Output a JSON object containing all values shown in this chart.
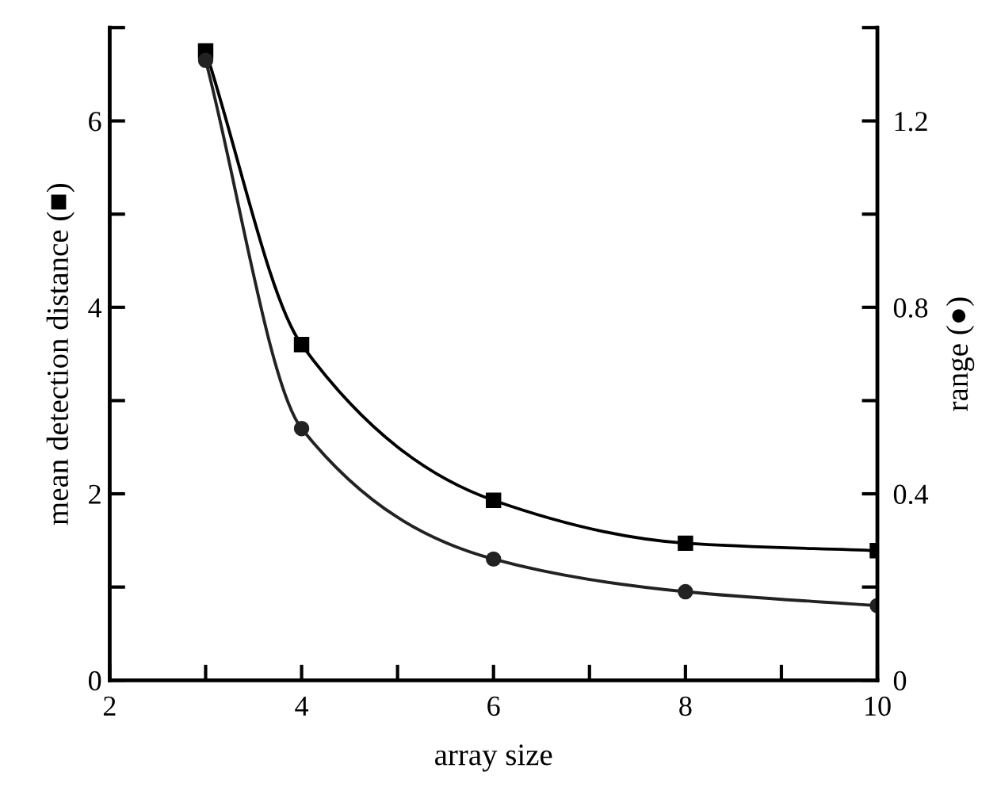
{
  "chart_data": {
    "type": "line",
    "xlabel": "array size",
    "ylabel": "mean detection distance (■)",
    "y2label": "range (●)",
    "x": [
      3,
      4,
      6,
      8,
      10
    ],
    "series": [
      {
        "color": "#000000",
        "marker": "square",
        "values": [
          6.75,
          3.6,
          1.93,
          1.47,
          1.39
        ]
      },
      {
        "color": "#222222",
        "marker": "circle",
        "axis": "y2",
        "values": [
          1.33,
          0.54,
          0.26,
          0.19,
          0.16
        ]
      }
    ],
    "xlim": [
      2,
      10
    ],
    "xticks": [
      2,
      {
        "value": 3,
        "label": null
      },
      4,
      {
        "value": 5,
        "label": null
      },
      6,
      {
        "value": 7,
        "label": null
      },
      8,
      {
        "value": 9,
        "label": null
      },
      10
    ],
    "ylim": [
      0,
      7
    ],
    "yticks": [
      0,
      {
        "value": 1,
        "label": null
      },
      2,
      {
        "value": 3,
        "label": null
      },
      4,
      {
        "value": 5,
        "label": null
      },
      6,
      {
        "value": 7,
        "label": null
      }
    ],
    "y2lim": [
      0,
      1.4
    ],
    "y2ticks": [
      0,
      {
        "value": 0.2,
        "label": null
      },
      0.4,
      {
        "value": 0.6,
        "label": null
      },
      0.8,
      {
        "value": 1.0,
        "label": null
      },
      1.2,
      {
        "value": 1.4,
        "label": null
      }
    ],
    "grid": false,
    "legend": false,
    "line_style": "solid"
  }
}
